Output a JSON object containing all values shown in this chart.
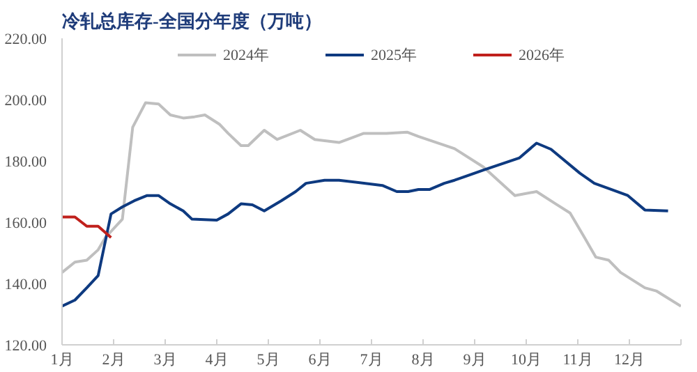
{
  "chart_data": {
    "type": "line",
    "title": "冷轧总库存-全国分年度（万吨）",
    "xlim": [
      1,
      13
    ],
    "xticks": [
      {
        "value": 1,
        "label": "1月"
      },
      {
        "value": 2,
        "label": "2月"
      },
      {
        "value": 3,
        "label": "3月"
      },
      {
        "value": 4,
        "label": "4月"
      },
      {
        "value": 5,
        "label": "5月"
      },
      {
        "value": 6,
        "label": "6月"
      },
      {
        "value": 7,
        "label": "7月"
      },
      {
        "value": 8,
        "label": "8月"
      },
      {
        "value": 9,
        "label": "9月"
      },
      {
        "value": 10,
        "label": "10月"
      },
      {
        "value": 11,
        "label": "11月"
      },
      {
        "value": 12,
        "label": "12月"
      },
      {
        "value": 13,
        "label": null
      }
    ],
    "ylim": [
      120,
      220
    ],
    "yticks": [
      {
        "value": 120,
        "label": "120.00"
      },
      {
        "value": 140,
        "label": "140.00"
      },
      {
        "value": 160,
        "label": "160.00"
      },
      {
        "value": 180,
        "label": "180.00"
      },
      {
        "value": 200,
        "label": "200.00"
      },
      {
        "value": 220,
        "label": "220.00"
      }
    ],
    "grid": false,
    "legend": "top",
    "marker": "none",
    "line_style": "solid",
    "series": [
      {
        "name": "2024年",
        "color": "#bfbfbf",
        "x": [
          1.0,
          1.25,
          1.48,
          1.7,
          1.84,
          2.17,
          2.37,
          2.62,
          2.87,
          3.1,
          3.35,
          3.57,
          3.77,
          4.05,
          4.22,
          4.47,
          4.61,
          4.92,
          5.17,
          5.62,
          5.9,
          6.37,
          6.85,
          7.29,
          7.69,
          7.91,
          8.61,
          9.17,
          9.78,
          10.2,
          10.57,
          10.85,
          11.13,
          11.35,
          11.6,
          11.83,
          12.3,
          12.52,
          13.0
        ],
        "values": [
          143.6,
          147,
          147.6,
          151,
          155,
          161,
          191,
          199,
          198.6,
          195,
          194,
          194.4,
          195,
          192,
          189,
          185,
          185,
          190,
          187,
          190,
          187,
          186,
          189,
          189,
          189.4,
          188,
          184,
          178,
          168.7,
          170,
          166,
          163,
          155,
          148.6,
          147.6,
          143.6,
          138.6,
          137.6,
          132.6
        ]
      },
      {
        "name": "2025年",
        "color": "#0e3a80",
        "x": [
          1.0,
          1.25,
          1.48,
          1.7,
          1.95,
          2.17,
          2.4,
          2.65,
          2.87,
          3.1,
          3.35,
          3.52,
          4.0,
          4.22,
          4.47,
          4.69,
          4.92,
          5.25,
          5.53,
          5.73,
          6.09,
          6.37,
          7.21,
          7.49,
          7.71,
          7.91,
          8.13,
          8.41,
          8.61,
          9.17,
          9.87,
          10.2,
          10.48,
          11.04,
          11.32,
          11.6,
          11.97,
          12.3,
          12.75
        ],
        "values": [
          132.6,
          134.6,
          138.6,
          142.6,
          162.7,
          165,
          167,
          168.7,
          168.7,
          166,
          163.7,
          161,
          160.7,
          162.7,
          166,
          165.7,
          163.7,
          167,
          170,
          172.7,
          173.7,
          173.7,
          172,
          170,
          170,
          170.7,
          170.7,
          172.7,
          173.7,
          177,
          181,
          185.8,
          183.8,
          176,
          172.7,
          171,
          168.7,
          164,
          163.7
        ]
      },
      {
        "name": "2026年",
        "color": "#c0201c",
        "x": [
          1.0,
          1.25,
          1.48,
          1.7,
          1.95
        ],
        "values": [
          161.7,
          161.7,
          158.7,
          158.7,
          155
        ]
      }
    ]
  }
}
